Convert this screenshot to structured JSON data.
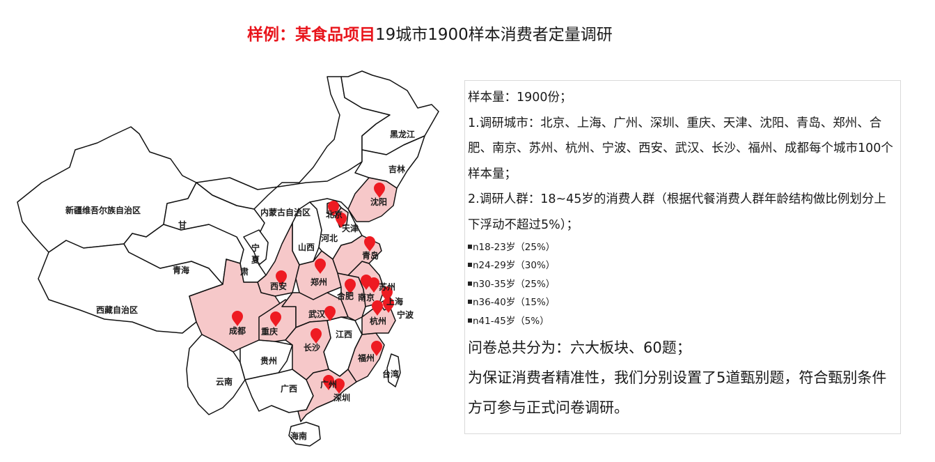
{
  "title": {
    "highlight": "样例：某食品项目",
    "text": "19城市1900样本消费者定量调研"
  },
  "map": {
    "colors": {
      "surveyed": "#f6c8c9",
      "other": "#ffffff",
      "border": "#111111",
      "marker": "#ee1b22"
    },
    "regions": [
      "新疆维吾尔族自治区",
      "西藏自治区",
      "青海",
      "甘",
      "肃",
      "宁",
      "夏",
      "内蒙古自治区",
      "黑龙江",
      "吉林",
      "山西",
      "河北",
      "云南",
      "贵州",
      "广西",
      "江西",
      "台湾",
      "海南"
    ],
    "surveyed_cities": [
      "北京",
      "天津",
      "沈阳",
      "青岛",
      "西安",
      "郑州",
      "苏州",
      "合肥",
      "南京",
      "上海",
      "宁波",
      "武汉",
      "杭州",
      "成都",
      "重庆",
      "长沙",
      "福州",
      "广州",
      "深圳"
    ]
  },
  "info": {
    "sample": "样本量：1900份；",
    "cities": "1.调研城市：北京、上海、广州、深圳、重庆、天津、沈阳、青岛、郑州、合肥、南京、苏州、杭州、宁波、西安、武汉、长沙、福州、成都每个城市100个样本量；",
    "people": "2.调研人群：18~45岁的消费人群（根据代餐消费人群年龄结构做比例划分上下浮动不超过5%）；",
    "ages": [
      "n18-23岁（25%）",
      "n24-29岁（30%）",
      "n30-35岁（25%）",
      "n36-40岁（15%）",
      "n41-45岁（5%）"
    ],
    "questionnaire": "问卷总共分为：六大板块、60题；",
    "screening": "为保证消费者精准性，我们分别设置了5道甄别题，符合甄别条件方可参与正式问卷调研。"
  }
}
